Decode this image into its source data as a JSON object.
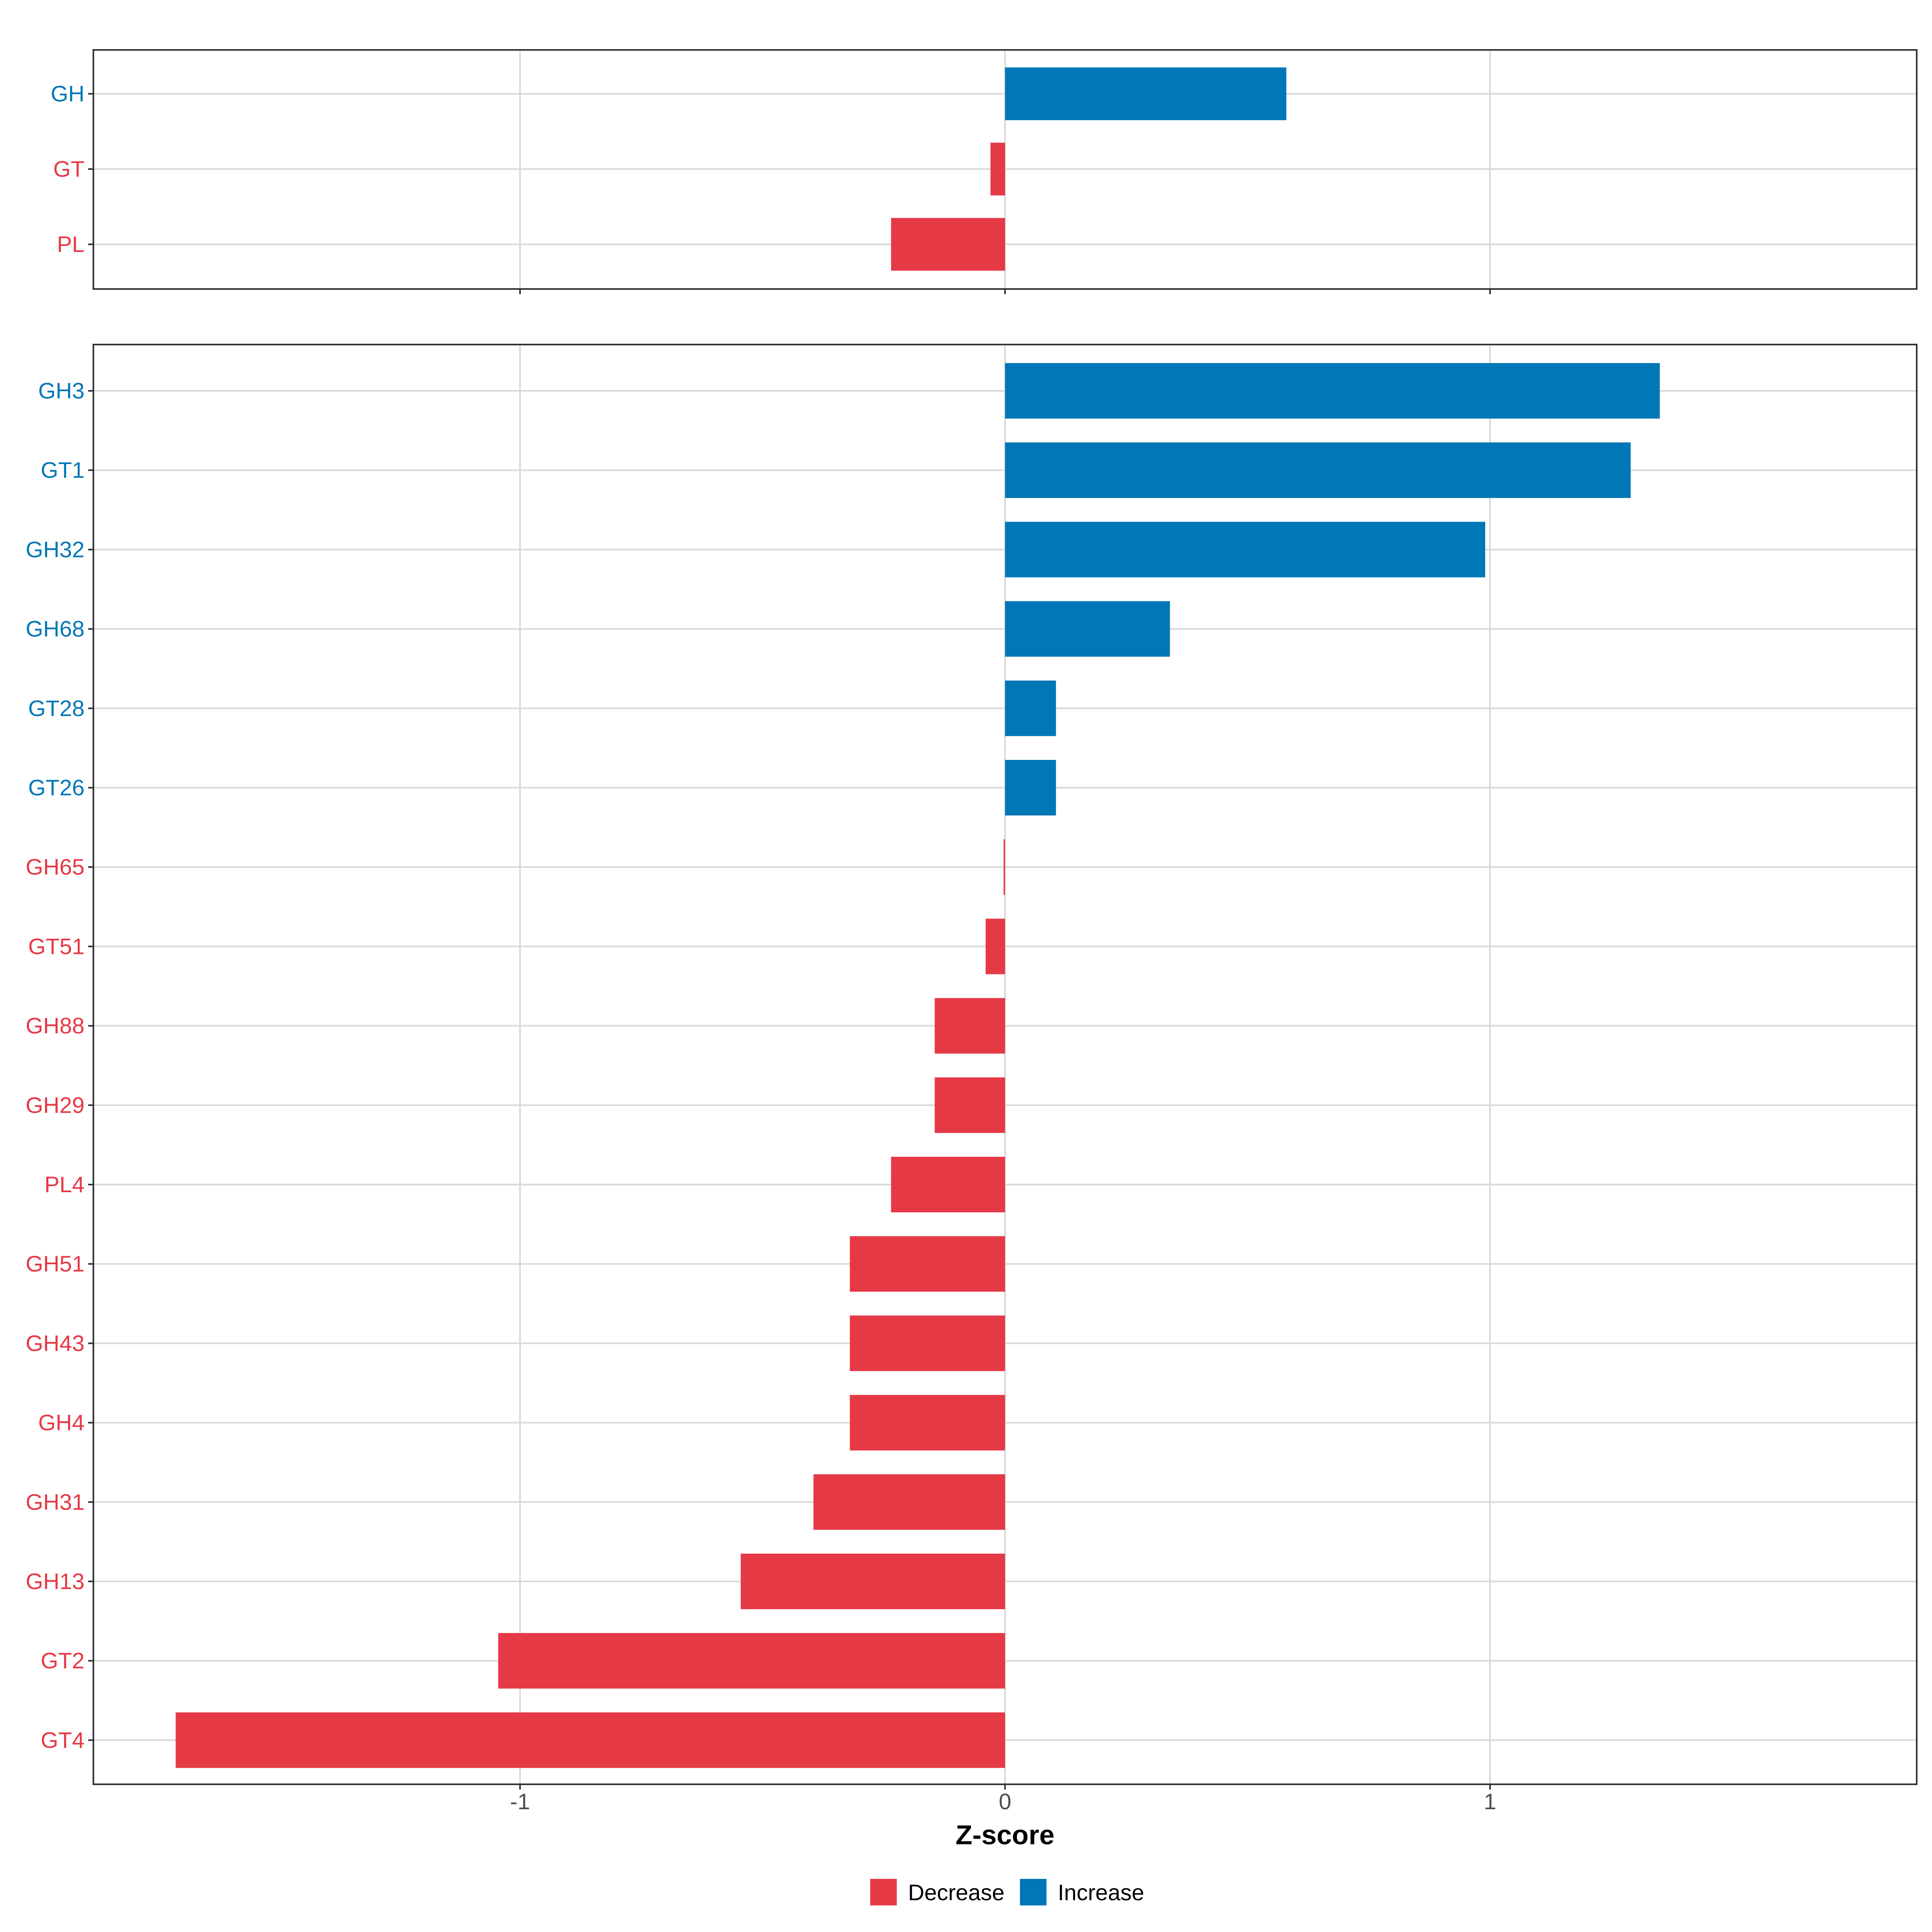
{
  "chart_data": {
    "type": "bar",
    "orientation": "horizontal",
    "xlabel": "Z-score",
    "xlim": [
      -1.88,
      1.88
    ],
    "x_ticks": [
      {
        "value": -1,
        "label": "-1"
      },
      {
        "value": 0,
        "label": "0"
      },
      {
        "value": 1,
        "label": "1"
      }
    ],
    "grid": true,
    "legend_position": "bottom",
    "colors": {
      "Decrease": "#E63946",
      "Increase": "#0077B6"
    },
    "legend": [
      {
        "label": "Decrease",
        "color": "#E63946"
      },
      {
        "label": "Increase",
        "color": "#0077B6"
      }
    ],
    "panels": [
      {
        "categories": [
          "GH",
          "GT",
          "PL"
        ],
        "values": [
          0.58,
          -0.03,
          -0.235
        ],
        "groups": [
          "Increase",
          "Decrease",
          "Decrease"
        ]
      },
      {
        "categories": [
          "GH3",
          "GT1",
          "GH32",
          "GH68",
          "GT28",
          "GT26",
          "GH65",
          "GT51",
          "GH88",
          "GH29",
          "PL4",
          "GH51",
          "GH43",
          "GH4",
          "GH31",
          "GH13",
          "GT2",
          "GT4"
        ],
        "values": [
          1.35,
          1.29,
          0.99,
          0.34,
          0.105,
          0.105,
          -0.003,
          -0.04,
          -0.145,
          -0.145,
          -0.235,
          -0.32,
          -0.32,
          -0.32,
          -0.395,
          -0.545,
          -1.045,
          -1.71
        ],
        "groups": [
          "Increase",
          "Increase",
          "Increase",
          "Increase",
          "Increase",
          "Increase",
          "Decrease",
          "Decrease",
          "Decrease",
          "Decrease",
          "Decrease",
          "Decrease",
          "Decrease",
          "Decrease",
          "Decrease",
          "Decrease",
          "Decrease",
          "Decrease"
        ]
      }
    ]
  }
}
